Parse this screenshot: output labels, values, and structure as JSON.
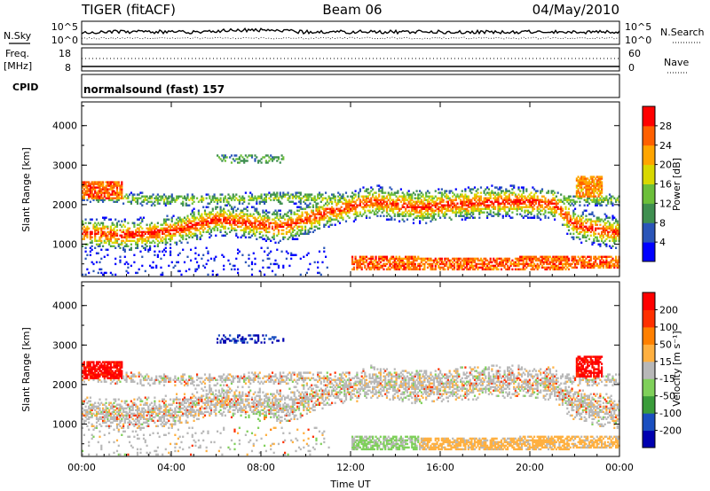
{
  "header": {
    "title_left": "TIGER (fitACF)",
    "title_center": "Beam 06",
    "title_right": "04/May/2010"
  },
  "strip_labels": {
    "nsky": "N.Sky",
    "nsearch": "N.Search",
    "freq_line1": "Freq.",
    "freq_line2": "[MHz]",
    "nave": "Nave",
    "cpid": "CPID",
    "cpid_value": "normalsound (fast) 157"
  },
  "strip_ticks": {
    "noise_left": [
      "10^5",
      "10^0"
    ],
    "noise_right": [
      "10^5",
      "10^0"
    ],
    "freq_left": [
      "18",
      "8"
    ],
    "nave_right": [
      "60",
      "0"
    ]
  },
  "colors": {
    "power_scale": [
      "#0000ff",
      "#2a55b8",
      "#3f8f50",
      "#6cbf3a",
      "#d8d800",
      "#ffa500",
      "#ff6000",
      "#ff0000"
    ],
    "velocity_scale": [
      "#0000b0",
      "#1a4fc0",
      "#3a9c3a",
      "#7fd05a",
      "#b8b8b8",
      "#ffb040",
      "#ff8000",
      "#ff3000",
      "#ff0000"
    ]
  },
  "chart_data": [
    {
      "type": "heatmap",
      "title": "",
      "xlabel": "",
      "ylabel": "Slant Range [km]",
      "xticks": [
        "00:00",
        "04:00",
        "08:00",
        "12:00",
        "16:00",
        "20:00",
        "00:00"
      ],
      "xlim": [
        0,
        24
      ],
      "yticks": [
        1000,
        2000,
        3000,
        4000
      ],
      "ylim": [
        180,
        4600
      ],
      "colorbar": {
        "label": "Power [dB]",
        "ticks": [
          4,
          8,
          12,
          16,
          20,
          24,
          28
        ],
        "range": [
          0,
          32
        ]
      },
      "grid": false
    },
    {
      "type": "heatmap",
      "title": "",
      "xlabel": "Time UT",
      "ylabel": "Slant Range [km]",
      "xticks": [
        "00:00",
        "04:00",
        "08:00",
        "12:00",
        "16:00",
        "20:00",
        "00:00"
      ],
      "xlim": [
        0,
        24
      ],
      "yticks": [
        1000,
        2000,
        3000,
        4000
      ],
      "ylim": [
        180,
        4600
      ],
      "colorbar": {
        "label": "Velocity [m s⁻¹]",
        "ticks": [
          200,
          100,
          50,
          15,
          -15,
          -50,
          -100,
          -200
        ],
        "range": [
          -250,
          250
        ]
      },
      "grid": false
    }
  ]
}
